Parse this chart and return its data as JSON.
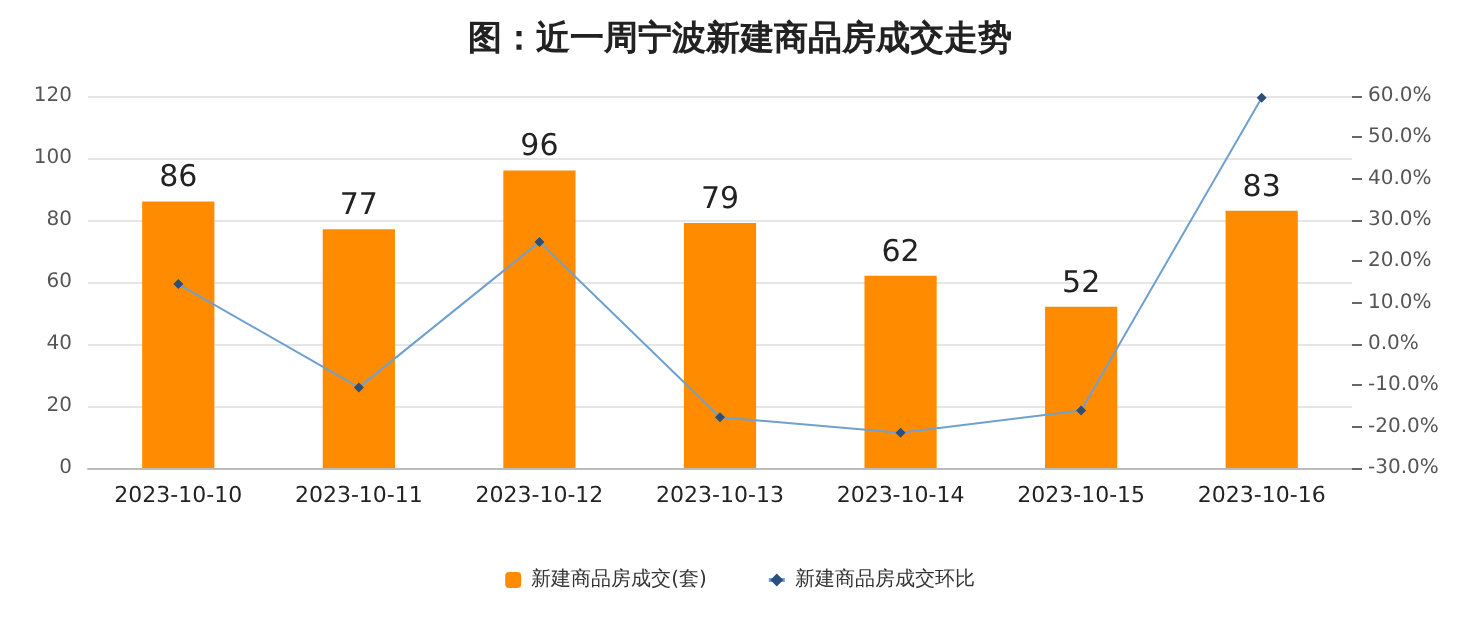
{
  "chart_data": {
    "type": "bar",
    "title": "图：近一周宁波新建商品房成交走势",
    "categories": [
      "2023-10-10",
      "2023-10-11",
      "2023-10-12",
      "2023-10-13",
      "2023-10-14",
      "2023-10-15",
      "2023-10-16"
    ],
    "series": [
      {
        "name": "新建商品房成交(套)",
        "color": "#ff8c00",
        "values": [
          86,
          77,
          96,
          79,
          62,
          52,
          83
        ],
        "value_labels": [
          "86",
          "77",
          "96",
          "79",
          "62",
          "52",
          "83"
        ]
      },
      {
        "name": "新建商品房成交环比",
        "type": "line",
        "axis": "y2",
        "color": "#6fa0d0",
        "marker": "diamond",
        "values": [
          14.5,
          -10.5,
          24.7,
          -17.7,
          -21.5,
          -16.1,
          59.6
        ]
      }
    ],
    "ylim": [
      0,
      120
    ],
    "yticks": [
      0,
      20,
      40,
      60,
      80,
      100,
      120
    ],
    "y2lim": [
      -30,
      60
    ],
    "y2ticks": [
      {
        "value": -30,
        "label": "-30.0%"
      },
      {
        "value": -20,
        "label": "-20.0%"
      },
      {
        "value": -10,
        "label": "-10.0%"
      },
      {
        "value": 0,
        "label": "0.0%"
      },
      {
        "value": 10,
        "label": "10.0%"
      },
      {
        "value": 20,
        "label": "20.0%"
      },
      {
        "value": 30,
        "label": "30.0%"
      },
      {
        "value": 40,
        "label": "40.0%"
      },
      {
        "value": 50,
        "label": "50.0%"
      },
      {
        "value": 60,
        "label": "60.0%"
      }
    ],
    "grid": "y",
    "legend": "bottom"
  }
}
